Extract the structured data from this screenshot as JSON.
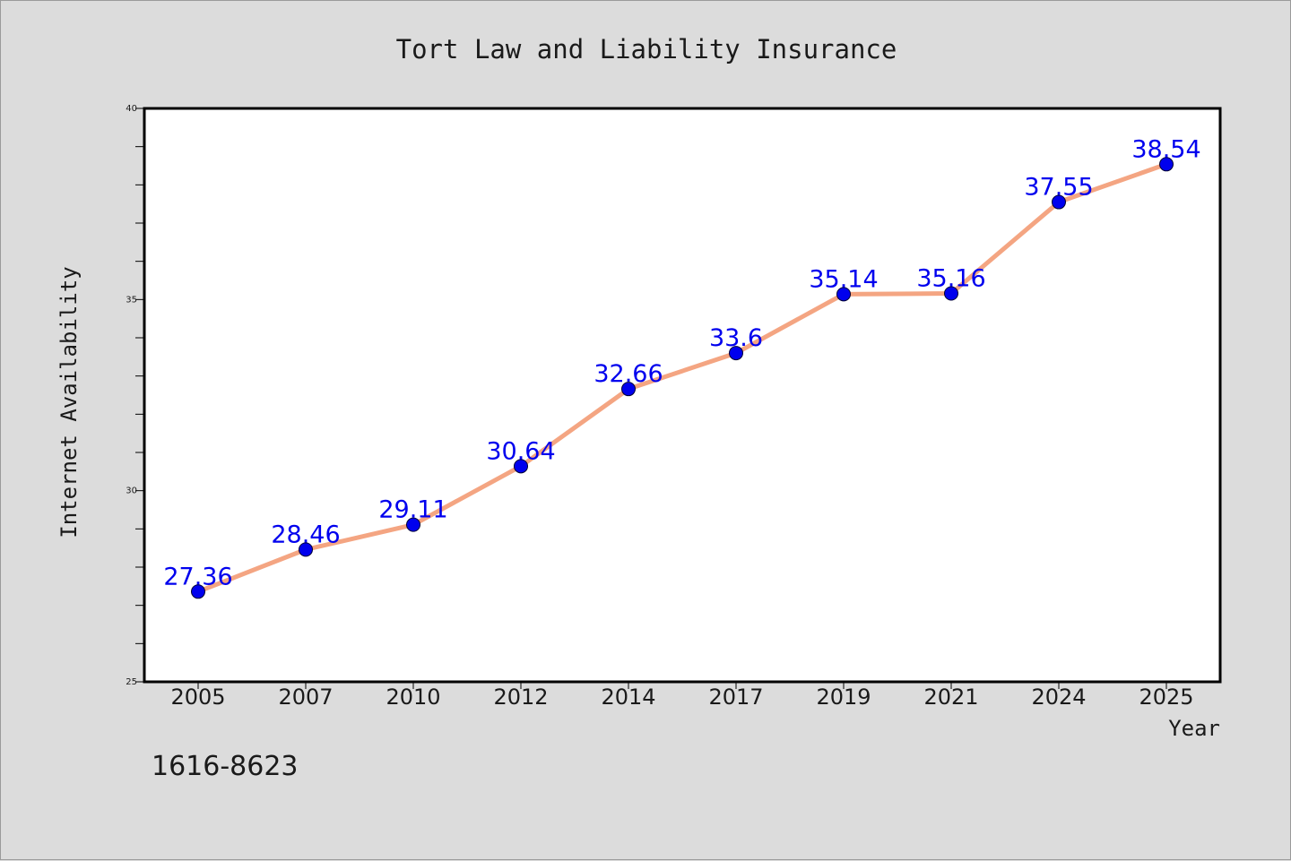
{
  "chart_data": {
    "type": "line",
    "title": "Tort Law and Liability Insurance",
    "xlabel": "Year",
    "ylabel": "Internet Availability",
    "categories": [
      "2005",
      "2007",
      "2010",
      "2012",
      "2014",
      "2017",
      "2019",
      "2021",
      "2024",
      "2025"
    ],
    "series": [
      {
        "values": [
          27.36,
          28.46,
          29.11,
          30.64,
          32.66,
          33.6,
          35.14,
          35.16,
          37.55,
          38.54
        ]
      }
    ],
    "data_labels": [
      "27.36",
      "28.46",
      "29.11",
      "30.64",
      "32.66",
      "33.6",
      "35.14",
      "35.16",
      "37.55",
      "38.54"
    ],
    "ylim": [
      25,
      40
    ],
    "yticks_major": [
      25,
      30,
      35,
      40
    ],
    "yticks_minor_step": 1,
    "grid": false,
    "line_color": "#f4a582",
    "marker_color": "#0000ee",
    "label_color": "#0000ee",
    "plot_background": "#ffffff",
    "figure_background": "#dcdcdc"
  },
  "footer": {
    "code": "1616-8623"
  }
}
